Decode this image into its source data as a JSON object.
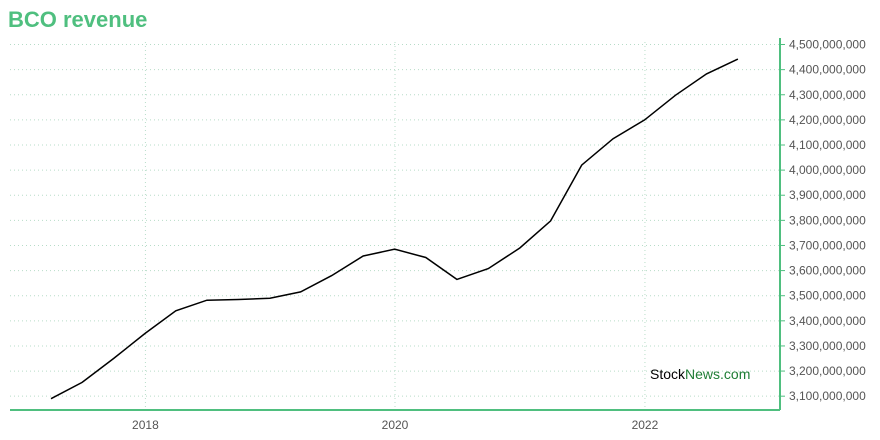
{
  "colors": {
    "accent": "#4fbf7f",
    "axis": "#4fbf7f",
    "grid": "#b7dcc8",
    "line": "#000000",
    "watermark_stock": "#000000",
    "watermark_news": "#1e7d35"
  },
  "chart_data": {
    "type": "line",
    "title": "BCO revenue",
    "xlabel": "",
    "ylabel": "",
    "x": [
      "2017-03-31",
      "2017-06-30",
      "2017-09-30",
      "2017-12-31",
      "2018-03-31",
      "2018-06-30",
      "2018-09-30",
      "2018-12-31",
      "2019-03-31",
      "2019-06-30",
      "2019-09-30",
      "2019-12-31",
      "2020-03-31",
      "2020-06-30",
      "2020-09-30",
      "2020-12-31",
      "2021-03-31",
      "2021-06-30",
      "2021-09-30",
      "2021-12-31",
      "2022-03-31",
      "2022-06-30",
      "2022-09-30"
    ],
    "values": [
      3090000000,
      3155000000,
      3250000000,
      3350000000,
      3440000000,
      3482000000,
      3485000000,
      3490000000,
      3515000000,
      3580000000,
      3658000000,
      3685000000,
      3652000000,
      3565000000,
      3608000000,
      3690000000,
      3798000000,
      4020000000,
      4125000000,
      4200000000,
      4298000000,
      4383000000,
      4442000000
    ],
    "xlim": [
      "2016-12-01",
      "2023-01-31"
    ],
    "ylim": [
      3045000000,
      4510000000
    ],
    "x_ticks": [
      {
        "date": "2018-01-01",
        "label": "2018"
      },
      {
        "date": "2020-01-01",
        "label": "2020"
      },
      {
        "date": "2022-01-01",
        "label": "2022"
      }
    ],
    "y_ticks": [
      {
        "value": 3100000000,
        "label": "3,100,000,000"
      },
      {
        "value": 3200000000,
        "label": "3,200,000,000"
      },
      {
        "value": 3300000000,
        "label": "3,300,000,000"
      },
      {
        "value": 3400000000,
        "label": "3,400,000,000"
      },
      {
        "value": 3500000000,
        "label": "3,500,000,000"
      },
      {
        "value": 3600000000,
        "label": "3,600,000,000"
      },
      {
        "value": 3700000000,
        "label": "3,700,000,000"
      },
      {
        "value": 3800000000,
        "label": "3,800,000,000"
      },
      {
        "value": 3900000000,
        "label": "3,900,000,000"
      },
      {
        "value": 4000000000,
        "label": "4,000,000,000"
      },
      {
        "value": 4100000000,
        "label": "4,100,000,000"
      },
      {
        "value": 4200000000,
        "label": "4,200,000,000"
      },
      {
        "value": 4300000000,
        "label": "4,300,000,000"
      },
      {
        "value": 4400000000,
        "label": "4,400,000,000"
      },
      {
        "value": 4500000000,
        "label": "4,500,000,000"
      }
    ],
    "grid": true,
    "y_axis_side": "right",
    "legend": "none"
  },
  "watermark": {
    "stock": "Stock",
    "news": "News",
    "domain": ".com"
  }
}
